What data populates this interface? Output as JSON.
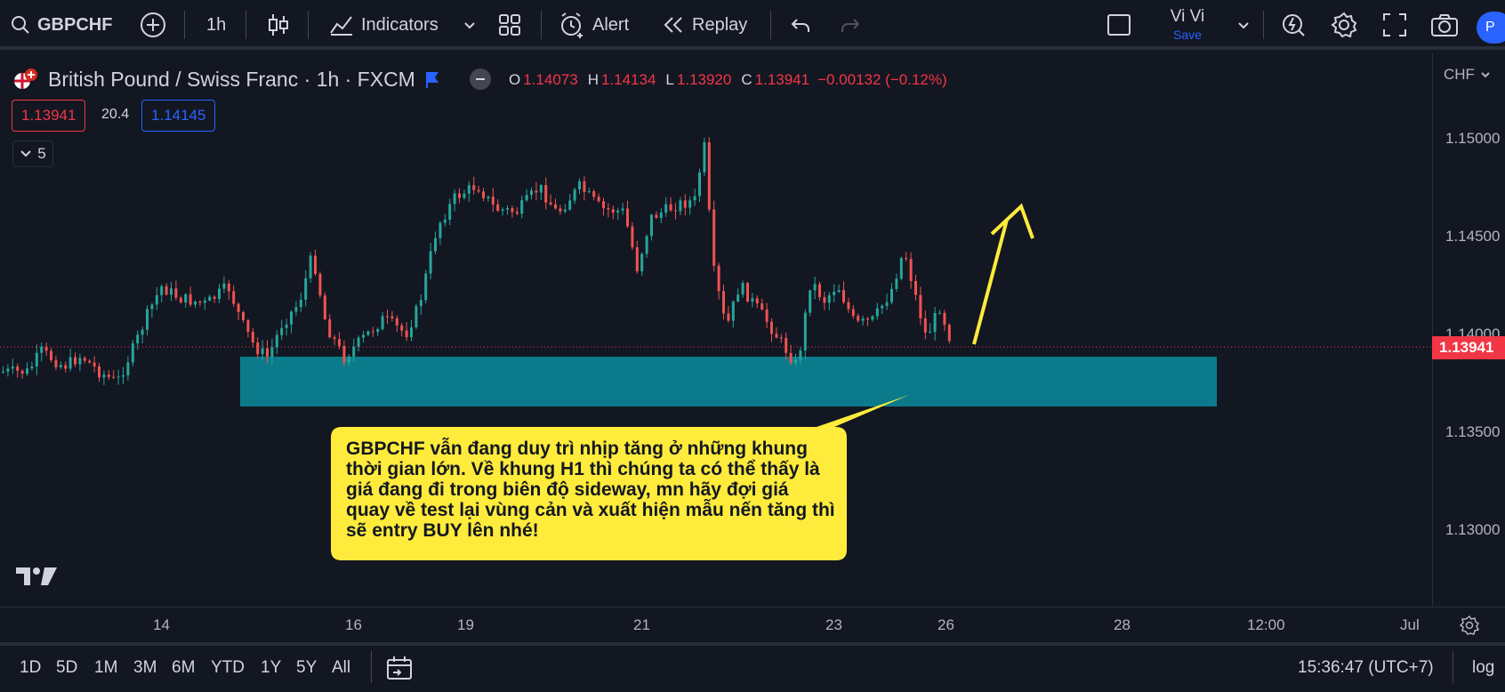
{
  "toolbar": {
    "symbol": "GBPCHF",
    "interval": "1h",
    "indicators_label": "Indicators",
    "alert_label": "Alert",
    "replay_label": "Replay",
    "user_name": "Vi Vi",
    "save_label": "Save",
    "publish_initial": "P"
  },
  "legend": {
    "title": "British Pound / Swiss Franc · 1h · FXCM",
    "open_label": "O",
    "open": "1.14073",
    "high_label": "H",
    "high": "1.14134",
    "low_label": "L",
    "low": "1.13920",
    "close_label": "C",
    "close": "1.13941",
    "change": "−0.00132 (−0.12%)",
    "sell_price": "1.13941",
    "spread": "20.4",
    "buy_price": "1.14145",
    "indicator_count": "5"
  },
  "price_scale": {
    "currency": "CHF",
    "ticks": [
      "1.15000",
      "1.14500",
      "1.14000",
      "1.13500",
      "1.13000"
    ],
    "current_price": "1.13941"
  },
  "time_scale": {
    "ticks": [
      "14",
      "16",
      "19",
      "21",
      "23",
      "26",
      "28",
      "12:00",
      "Jul"
    ]
  },
  "annotation": {
    "text": "GBPCHF vẫn đang duy trì nhịp tăng ở những khung thời gian lớn. Về khung H1 thì chúng ta có thể thấy là giá đang đi trong biên độ sideway, mn hãy đợi giá quay về test lại vùng cản và xuất hiện mẫu nến tăng thì sẽ entry BUY lên nhé!"
  },
  "bottombar": {
    "ranges": [
      "1D",
      "5D",
      "1M",
      "3M",
      "6M",
      "YTD",
      "1Y",
      "5Y",
      "All"
    ],
    "clock": "15:36:47 (UTC+7)",
    "log_label": "log"
  },
  "colors": {
    "background": "#131722",
    "up": "#26a69a",
    "down": "#ef5350",
    "zone": "#0b7b8b",
    "callout": "#ffeb3b",
    "price_tag": "#f23645"
  },
  "chart_data": {
    "type": "candlestick",
    "price_range": [
      1.127,
      1.152
    ],
    "support_zone": [
      1.1368,
      1.1388
    ],
    "current_price": 1.13941
  }
}
